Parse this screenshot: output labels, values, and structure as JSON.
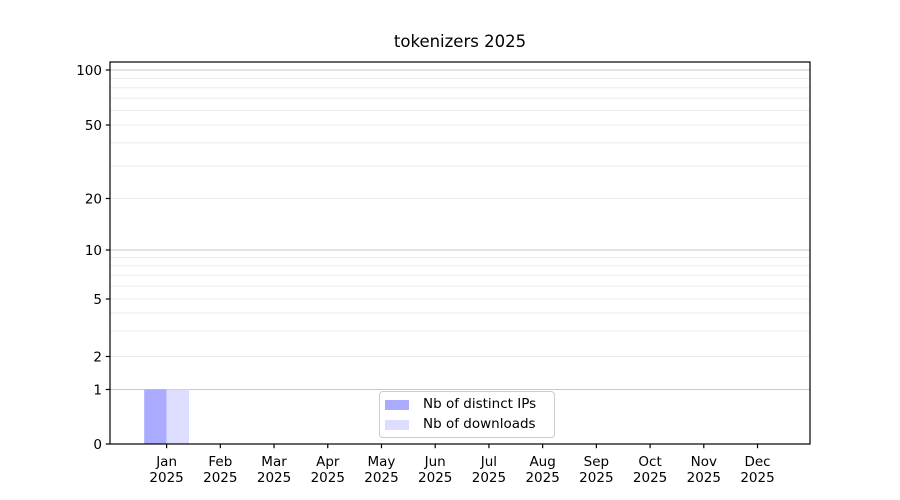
{
  "chart_data": {
    "type": "bar",
    "title": "tokenizers 2025",
    "year_label": "2025",
    "categories": [
      "Jan",
      "Feb",
      "Mar",
      "Apr",
      "May",
      "Jun",
      "Jul",
      "Aug",
      "Sep",
      "Oct",
      "Nov",
      "Dec"
    ],
    "series": [
      {
        "name": "Nb of distinct IPs",
        "color": "#aaaaff",
        "values": [
          1,
          0,
          0,
          0,
          0,
          0,
          0,
          0,
          0,
          0,
          0,
          0
        ]
      },
      {
        "name": "Nb of downloads",
        "color": "#ddddff",
        "values": [
          1,
          0,
          0,
          0,
          0,
          0,
          0,
          0,
          0,
          0,
          0,
          0
        ]
      }
    ],
    "x_axis": {
      "tick_label_line1": [
        "Jan",
        "Feb",
        "Mar",
        "Apr",
        "May",
        "Jun",
        "Jul",
        "Aug",
        "Sep",
        "Oct",
        "Nov",
        "Dec"
      ],
      "tick_label_line2": "2025"
    },
    "y_axis": {
      "scale": "symlog",
      "labeled_ticks": [
        0,
        1,
        2,
        5,
        10,
        20,
        50,
        100
      ],
      "minor_gridlines": [
        3,
        4,
        6,
        7,
        8,
        9,
        30,
        40,
        60,
        70,
        80,
        90
      ],
      "ylim": [
        0,
        110
      ],
      "grid": "both"
    },
    "legend": {
      "position": "bottom-center-inside"
    }
  },
  "colors": {
    "bar_distinct_ips": "#aaaaff",
    "bar_downloads": "#ddddff",
    "grid_major": "#c8c8c8",
    "grid_minor": "#ebebeb",
    "axis_line": "#000000",
    "text": "#000000",
    "legend_border": "#cccccc",
    "background": "#ffffff"
  }
}
